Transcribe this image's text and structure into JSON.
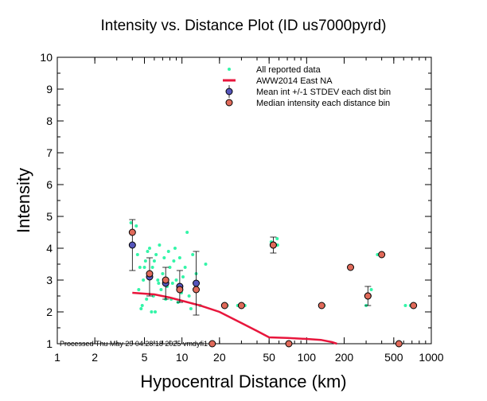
{
  "chart_data": {
    "type": "scatter",
    "title": "Intensity vs. Distance Plot (ID us7000pyrd)",
    "xlabel": "Hypocentral Distance (km)",
    "ylabel": "Intensity",
    "x_scale": "log",
    "xlim": [
      1,
      1000
    ],
    "ylim": [
      1,
      10
    ],
    "x_ticks": [
      1,
      2,
      5,
      10,
      20,
      50,
      100,
      200,
      500,
      1000
    ],
    "x_tick_labels": [
      "1",
      "2",
      "5",
      "10",
      "20",
      "50",
      "100",
      "200",
      "500",
      "1000"
    ],
    "y_ticks": [
      1,
      2,
      3,
      4,
      5,
      6,
      7,
      8,
      9,
      10
    ],
    "y_tick_labels": [
      "1",
      "2",
      "3",
      "4",
      "5",
      "6",
      "7",
      "8",
      "9",
      "10"
    ],
    "legend_position": "top-right",
    "footer": "Processed Thu May 29 04:28:18 2025 vmdyfi1",
    "series": [
      {
        "name": "All reported data",
        "kind": "points",
        "color": "#33f5a8",
        "points": [
          [
            3.9,
            4.8
          ],
          [
            4.1,
            4.1
          ],
          [
            4.3,
            4.7
          ],
          [
            4.4,
            3.8
          ],
          [
            4.5,
            2.7
          ],
          [
            4.6,
            3.4
          ],
          [
            4.7,
            2.1
          ],
          [
            4.8,
            2.2
          ],
          [
            4.9,
            3.0
          ],
          [
            5.0,
            3.4
          ],
          [
            5.1,
            3.6
          ],
          [
            5.2,
            2.4
          ],
          [
            5.3,
            3.9
          ],
          [
            5.4,
            3.2
          ],
          [
            5.5,
            4.0
          ],
          [
            5.6,
            3.1
          ],
          [
            5.7,
            2.0
          ],
          [
            5.8,
            3.4
          ],
          [
            5.9,
            2.5
          ],
          [
            6.0,
            3.6
          ],
          [
            6.1,
            2.0
          ],
          [
            6.2,
            3.8
          ],
          [
            6.4,
            3.0
          ],
          [
            6.5,
            2.9
          ],
          [
            6.6,
            4.1
          ],
          [
            6.8,
            2.7
          ],
          [
            7.0,
            3.2
          ],
          [
            7.2,
            3.7
          ],
          [
            7.4,
            2.4
          ],
          [
            7.6,
            2.8
          ],
          [
            7.8,
            3.9
          ],
          [
            8.0,
            3.4
          ],
          [
            8.2,
            2.4
          ],
          [
            8.4,
            2.9
          ],
          [
            8.6,
            3.6
          ],
          [
            8.8,
            4.0
          ],
          [
            9.0,
            3.0
          ],
          [
            9.3,
            2.3
          ],
          [
            9.6,
            3.7
          ],
          [
            9.9,
            2.6
          ],
          [
            10.2,
            3.1
          ],
          [
            10.6,
            3.4
          ],
          [
            11.0,
            4.5
          ],
          [
            11.4,
            2.5
          ],
          [
            11.8,
            2.1
          ],
          [
            12.2,
            3.8
          ],
          [
            12.6,
            2.9
          ],
          [
            13.0,
            3.2
          ],
          [
            14.0,
            2.2
          ],
          [
            15.5,
            3.5
          ],
          [
            23.0,
            2.2
          ],
          [
            28.0,
            2.2
          ],
          [
            32.0,
            2.2
          ],
          [
            52.0,
            4.2
          ],
          [
            58.0,
            4.3
          ],
          [
            58.5,
            4.1
          ],
          [
            72.0,
            1.0
          ],
          [
            138.0,
            2.2
          ],
          [
            300.0,
            2.2
          ],
          [
            330.0,
            2.7
          ],
          [
            370.0,
            3.8
          ],
          [
            620.0,
            2.2
          ],
          [
            680.0,
            2.2
          ]
        ]
      },
      {
        "name": "AWW2014 East NA",
        "kind": "line",
        "color": "#e8163c",
        "points": [
          [
            4,
            2.6
          ],
          [
            6,
            2.55
          ],
          [
            8,
            2.45
          ],
          [
            10,
            2.35
          ],
          [
            14,
            2.2
          ],
          [
            20,
            2.0
          ],
          [
            30,
            1.65
          ],
          [
            40,
            1.4
          ],
          [
            50,
            1.2
          ],
          [
            70,
            1.18
          ],
          [
            100,
            1.15
          ],
          [
            130,
            1.12
          ],
          [
            160,
            1.05
          ],
          [
            175,
            1.0
          ]
        ]
      },
      {
        "name": "Mean int +/-1 STDEV each dist bin",
        "kind": "errorbar",
        "color": "#5555bb",
        "points": [
          {
            "x": 4.0,
            "y": 4.1,
            "err": 0.8
          },
          {
            "x": 5.5,
            "y": 3.1,
            "err": 0.6
          },
          {
            "x": 7.4,
            "y": 2.9,
            "err": 0.5
          },
          {
            "x": 9.6,
            "y": 2.8,
            "err": 0.5
          },
          {
            "x": 13.0,
            "y": 2.9,
            "err": 1.0
          },
          {
            "x": 54.0,
            "y": 4.1,
            "err": 0.25
          },
          {
            "x": 310.0,
            "y": 2.5,
            "err": 0.3
          }
        ]
      },
      {
        "name": "Median intensity each distance bin",
        "kind": "points",
        "color": "#e06a5a",
        "points": [
          [
            4.0,
            4.5
          ],
          [
            5.5,
            3.2
          ],
          [
            7.4,
            3.0
          ],
          [
            9.6,
            2.7
          ],
          [
            13.0,
            2.7
          ],
          [
            17.5,
            1.0
          ],
          [
            22.0,
            2.2
          ],
          [
            30.0,
            2.2
          ],
          [
            54.0,
            4.1
          ],
          [
            72.0,
            1.0
          ],
          [
            132.0,
            2.2
          ],
          [
            225.0,
            3.4
          ],
          [
            310.0,
            2.5
          ],
          [
            400.0,
            3.8
          ],
          [
            550.0,
            1.0
          ],
          [
            720.0,
            2.2
          ]
        ]
      }
    ]
  }
}
